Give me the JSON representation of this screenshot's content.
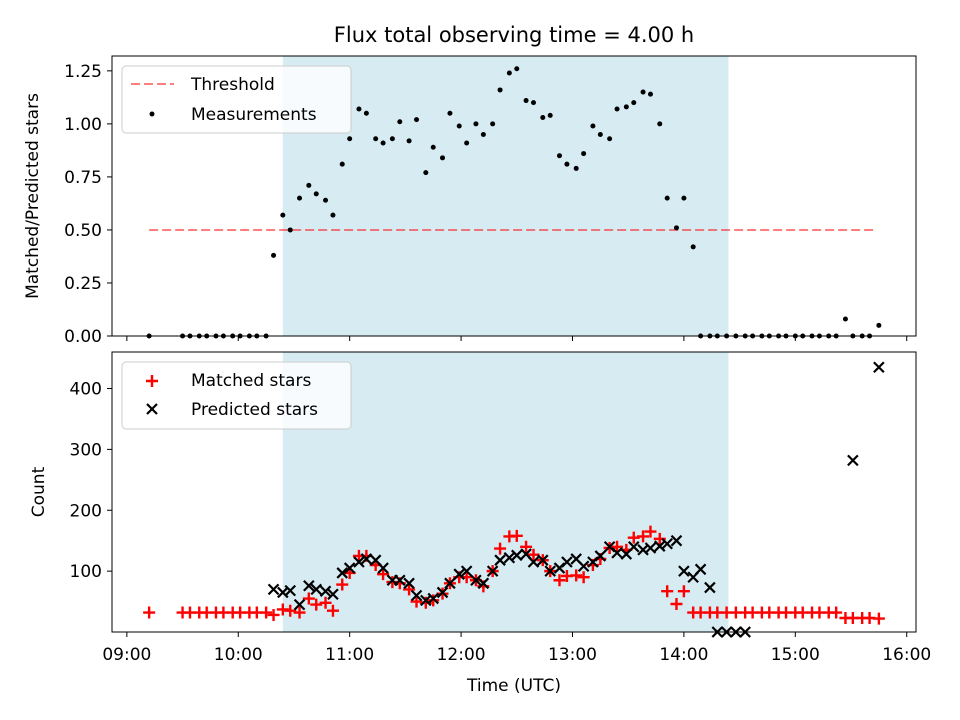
{
  "figure": {
    "title": "Flux total observing time = 4.00 h",
    "xlabel": "Time (UTC)",
    "colors": {
      "shade": "#add8e6",
      "threshold": "#ff0000",
      "measurement": "#000000",
      "matched": "#ff0000",
      "predicted": "#000000"
    }
  },
  "chart_data": [
    {
      "type": "scatter",
      "ylabel": "Matched/Predicted stars",
      "xlim": [
        "08:52",
        "16:05"
      ],
      "ylim": [
        0,
        1.32
      ],
      "yticks": [
        0,
        0.25,
        0.5,
        0.75,
        1.0,
        1.25
      ],
      "ytick_labels": [
        "0.00",
        "0.25",
        "0.50",
        "0.75",
        "1.00",
        "1.25"
      ],
      "shaded_interval": [
        "10:24",
        "14:24"
      ],
      "legend": {
        "position": "top-left",
        "entries": [
          "Threshold",
          "Measurements"
        ]
      },
      "threshold": {
        "name": "Threshold",
        "value": 0.5,
        "x_range": [
          "09:12",
          "15:43"
        ]
      },
      "series": [
        {
          "name": "Measurements",
          "x": [
            "09:12",
            "09:30",
            "09:34",
            "09:39",
            "09:43",
            "09:48",
            "09:52",
            "09:57",
            "10:01",
            "10:06",
            "10:10",
            "10:15",
            "10:19",
            "10:24",
            "10:28",
            "10:33",
            "10:38",
            "10:42",
            "10:47",
            "10:51",
            "10:56",
            "11:00",
            "11:05",
            "11:09",
            "11:14",
            "11:18",
            "11:23",
            "11:27",
            "11:32",
            "11:36",
            "11:41",
            "11:45",
            "11:50",
            "11:54",
            "11:59",
            "12:03",
            "12:08",
            "12:12",
            "12:17",
            "12:21",
            "12:26",
            "12:30",
            "12:35",
            "12:39",
            "12:44",
            "12:48",
            "12:53",
            "12:57",
            "13:02",
            "13:06",
            "13:11",
            "13:15",
            "13:20",
            "13:24",
            "13:29",
            "13:33",
            "13:38",
            "13:42",
            "13:47",
            "13:51",
            "13:56",
            "14:00",
            "14:05",
            "14:09",
            "14:14",
            "14:18",
            "14:23",
            "14:28",
            "14:33",
            "14:37",
            "14:42",
            "14:46",
            "14:51",
            "14:55",
            "15:00",
            "15:04",
            "15:09",
            "15:13",
            "15:18",
            "15:22",
            "15:27",
            "15:31",
            "15:36",
            "15:40",
            "15:45"
          ],
          "y": [
            0.0,
            0.0,
            0.0,
            0.0,
            0.0,
            0.0,
            0.0,
            0.0,
            0.0,
            0.0,
            0.0,
            0.0,
            0.38,
            0.57,
            0.5,
            0.65,
            0.71,
            0.67,
            0.64,
            0.57,
            0.81,
            0.93,
            1.07,
            1.05,
            0.93,
            0.91,
            0.93,
            1.01,
            0.92,
            1.02,
            0.77,
            0.89,
            0.84,
            1.05,
            0.99,
            0.91,
            1.0,
            0.95,
            1.0,
            1.16,
            1.24,
            1.26,
            1.11,
            1.1,
            1.03,
            1.04,
            0.85,
            0.81,
            0.79,
            0.86,
            0.99,
            0.95,
            0.93,
            1.07,
            1.08,
            1.1,
            1.15,
            1.14,
            1.0,
            0.65,
            0.51,
            0.65,
            0.42,
            0.0,
            0.0,
            0.0,
            0.0,
            0.0,
            0.0,
            0.0,
            0.0,
            0.0,
            0.0,
            0.0,
            0.0,
            0.0,
            0.0,
            0.0,
            0.0,
            0.0,
            0.08,
            0.0,
            0.0,
            0.0,
            0.05
          ]
        }
      ]
    },
    {
      "type": "scatter",
      "ylabel": "Count",
      "xlim": [
        "08:52",
        "16:05"
      ],
      "ylim": [
        0,
        460
      ],
      "yticks": [
        100,
        200,
        300,
        400
      ],
      "xticks": [
        "09:00",
        "10:00",
        "11:00",
        "12:00",
        "13:00",
        "14:00",
        "15:00",
        "16:00"
      ],
      "shaded_interval": [
        "10:24",
        "14:24"
      ],
      "legend": {
        "position": "top-left",
        "entries": [
          "Matched stars",
          "Predicted stars"
        ]
      },
      "series": [
        {
          "name": "Matched stars",
          "marker": "+",
          "x": [
            "09:12",
            "09:30",
            "09:34",
            "09:39",
            "09:43",
            "09:48",
            "09:52",
            "09:57",
            "10:01",
            "10:06",
            "10:10",
            "10:15",
            "10:19",
            "10:24",
            "10:28",
            "10:33",
            "10:38",
            "10:42",
            "10:47",
            "10:51",
            "10:56",
            "11:00",
            "11:05",
            "11:09",
            "11:14",
            "11:18",
            "11:23",
            "11:27",
            "11:32",
            "11:36",
            "11:41",
            "11:45",
            "11:50",
            "11:54",
            "11:59",
            "12:03",
            "12:08",
            "12:12",
            "12:17",
            "12:21",
            "12:26",
            "12:30",
            "12:35",
            "12:39",
            "12:44",
            "12:48",
            "12:53",
            "12:57",
            "13:02",
            "13:06",
            "13:11",
            "13:15",
            "13:20",
            "13:24",
            "13:29",
            "13:33",
            "13:38",
            "13:42",
            "13:47",
            "13:51",
            "13:56",
            "14:00",
            "14:05",
            "14:09",
            "14:14",
            "14:18",
            "14:23",
            "14:28",
            "14:33",
            "14:37",
            "14:42",
            "14:46",
            "14:51",
            "14:55",
            "15:00",
            "15:04",
            "15:09",
            "15:13",
            "15:18",
            "15:22",
            "15:27",
            "15:31",
            "15:36",
            "15:40",
            "15:45"
          ],
          "y": [
            32,
            32,
            32,
            32,
            32,
            32,
            32,
            32,
            32,
            32,
            32,
            32,
            28,
            37,
            35,
            32,
            55,
            45,
            48,
            35,
            78,
            97,
            125,
            125,
            110,
            95,
            82,
            80,
            70,
            50,
            48,
            52,
            63,
            80,
            90,
            90,
            85,
            75,
            100,
            137,
            157,
            158,
            140,
            127,
            118,
            100,
            85,
            92,
            93,
            90,
            110,
            120,
            138,
            140,
            135,
            155,
            157,
            165,
            153,
            67,
            46,
            67,
            32,
            32,
            32,
            32,
            32,
            32,
            32,
            32,
            32,
            32,
            32,
            32,
            32,
            32,
            32,
            32,
            32,
            32,
            23,
            23,
            23,
            23,
            22
          ]
        },
        {
          "name": "Predicted stars",
          "marker": "x",
          "x": [
            "10:19",
            "10:24",
            "10:28",
            "10:33",
            "10:38",
            "10:42",
            "10:47",
            "10:51",
            "10:56",
            "11:00",
            "11:05",
            "11:09",
            "11:14",
            "11:18",
            "11:23",
            "11:27",
            "11:32",
            "11:36",
            "11:41",
            "11:45",
            "11:50",
            "11:54",
            "11:59",
            "12:03",
            "12:08",
            "12:12",
            "12:17",
            "12:21",
            "12:26",
            "12:30",
            "12:35",
            "12:39",
            "12:44",
            "12:48",
            "12:53",
            "12:57",
            "13:02",
            "13:06",
            "13:11",
            "13:15",
            "13:20",
            "13:24",
            "13:29",
            "13:33",
            "13:38",
            "13:42",
            "13:47",
            "13:51",
            "13:56",
            "14:00",
            "14:05",
            "14:09",
            "14:14",
            "14:18",
            "14:23",
            "14:28",
            "14:33",
            "15:31",
            "15:45"
          ],
          "y": [
            70,
            65,
            68,
            45,
            76,
            70,
            67,
            62,
            97,
            105,
            115,
            120,
            118,
            105,
            85,
            85,
            80,
            60,
            52,
            55,
            65,
            80,
            95,
            100,
            85,
            80,
            100,
            118,
            122,
            126,
            128,
            115,
            118,
            100,
            105,
            115,
            120,
            108,
            115,
            125,
            140,
            130,
            128,
            140,
            135,
            138,
            141,
            145,
            150,
            100,
            90,
            103,
            73,
            0,
            0,
            0,
            0,
            282,
            435
          ]
        }
      ]
    }
  ]
}
